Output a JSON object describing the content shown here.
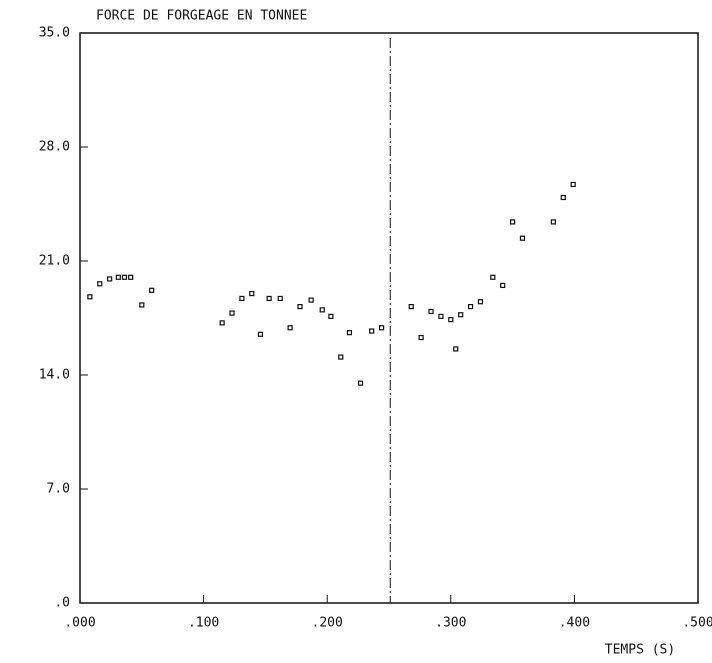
{
  "chart_data": {
    "type": "scatter",
    "title": "FORCE DE FORGEAGE EN TONNEE",
    "x_label": "TEMPS (S)",
    "xlim": [
      0,
      0.5
    ],
    "ylim": [
      0,
      35
    ],
    "xticks": [
      {
        "value": 0,
        "label": ".000"
      },
      {
        "value": 0.1,
        "label": ".100"
      },
      {
        "value": 0.2,
        "label": ".200"
      },
      {
        "value": 0.3,
        "label": ".300"
      },
      {
        "value": 0.4,
        "label": ".400"
      },
      {
        "value": 0.5,
        "label": ".500"
      }
    ],
    "yticks": [
      {
        "value": 0,
        "label": ".0"
      },
      {
        "value": 7,
        "label": "7.0"
      },
      {
        "value": 14,
        "label": "14.0"
      },
      {
        "value": 21,
        "label": "21.0"
      },
      {
        "value": 28,
        "label": "28.0"
      },
      {
        "value": 35,
        "label": "35.0"
      }
    ],
    "vline_x": 0.251,
    "color": "#111",
    "x": [
      0.008,
      0.016,
      0.024,
      0.031,
      0.036,
      0.041,
      0.05,
      0.058,
      0.115,
      0.123,
      0.131,
      0.139,
      0.146,
      0.153,
      0.162,
      0.17,
      0.178,
      0.187,
      0.196,
      0.203,
      0.211,
      0.218,
      0.227,
      0.236,
      0.244,
      0.268,
      0.276,
      0.284,
      0.292,
      0.3,
      0.304,
      0.308,
      0.316,
      0.324,
      0.334,
      0.342,
      0.35,
      0.358,
      0.383,
      0.391,
      0.399
    ],
    "values": [
      18.8,
      19.6,
      19.9,
      20.0,
      20.0,
      20.0,
      18.3,
      19.2,
      17.2,
      17.8,
      18.7,
      19.0,
      16.5,
      18.7,
      18.7,
      16.9,
      18.2,
      18.6,
      18.0,
      17.6,
      15.1,
      16.6,
      13.5,
      16.7,
      16.9,
      18.2,
      16.3,
      17.9,
      17.6,
      17.4,
      15.6,
      17.7,
      18.2,
      18.5,
      20.0,
      19.5,
      23.4,
      22.4,
      23.4,
      24.9,
      25.7
    ]
  }
}
